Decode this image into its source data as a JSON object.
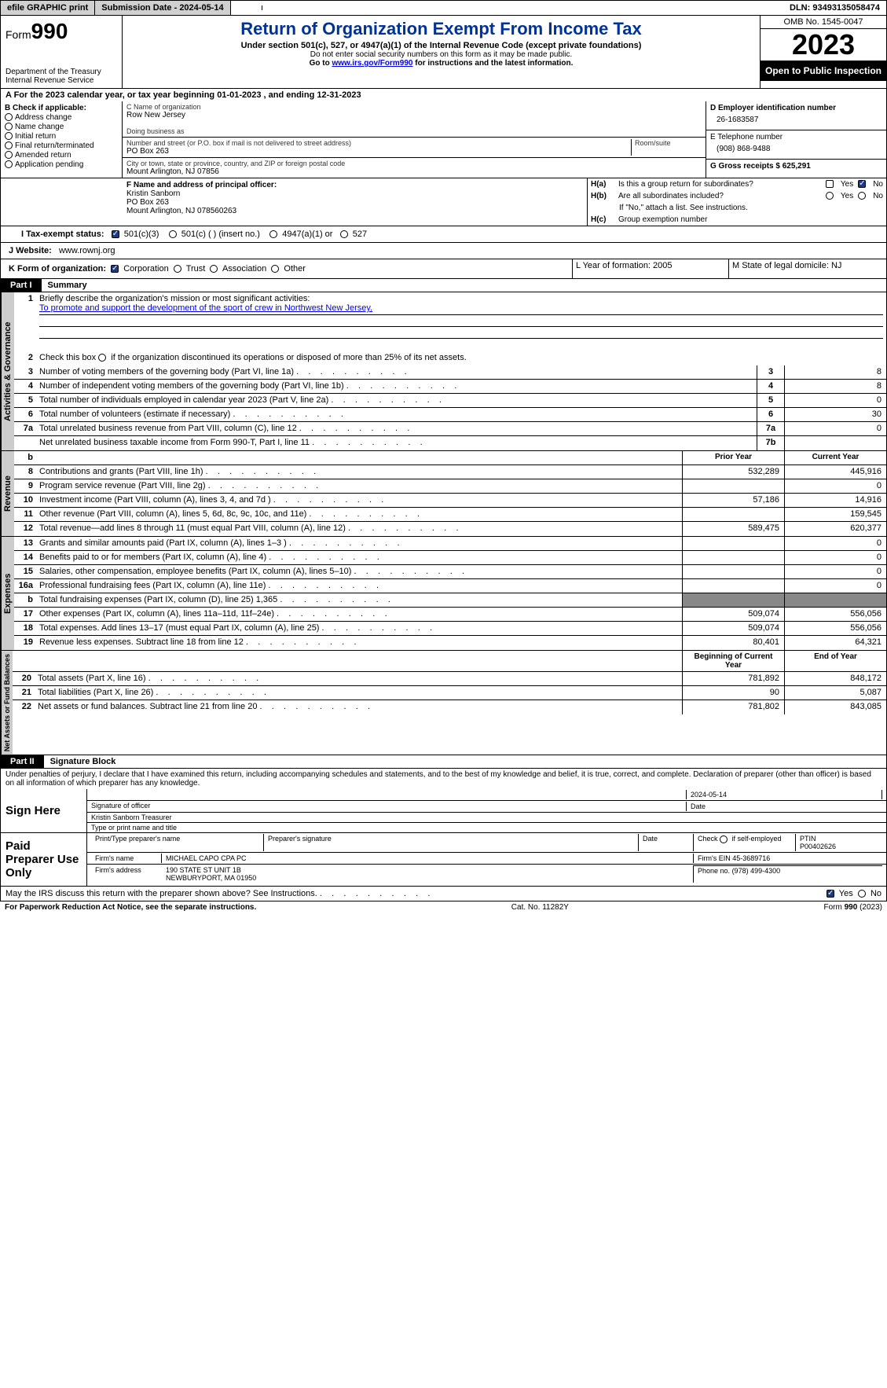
{
  "topbar": {
    "efile": "efile GRAPHIC print",
    "submission": "Submission Date - 2024-05-14",
    "dln": "DLN: 93493135058474"
  },
  "header": {
    "form_label": "Form",
    "form_num": "990",
    "dept": "Department of the Treasury",
    "irs": "Internal Revenue Service",
    "title": "Return of Organization Exempt From Income Tax",
    "sub": "Under section 501(c), 527, or 4947(a)(1) of the Internal Revenue Code (except private foundations)",
    "note1": "Do not enter social security numbers on this form as it may be made public.",
    "note2_pre": "Go to ",
    "note2_link": "www.irs.gov/Form990",
    "note2_post": " for instructions and the latest information.",
    "omb": "OMB No. 1545-0047",
    "year": "2023",
    "inspect": "Open to Public Inspection"
  },
  "line_a": "A  For the 2023 calendar year, or tax year beginning 01-01-2023    , and ending 12-31-2023",
  "box_b": {
    "title": "B Check if applicable:",
    "items": [
      "Address change",
      "Name change",
      "Initial return",
      "Final return/terminated",
      "Amended return",
      "Application pending"
    ]
  },
  "box_c": {
    "name_lbl": "C Name of organization",
    "name": "Row New Jersey",
    "dba_lbl": "Doing business as",
    "addr_lbl": "Number and street (or P.O. box if mail is not delivered to street address)",
    "addr": "PO Box 263",
    "room_lbl": "Room/suite",
    "city_lbl": "City or town, state or province, country, and ZIP or foreign postal code",
    "city": "Mount Arlington, NJ  07856"
  },
  "box_d": {
    "lbl": "D Employer identification number",
    "val": "26-1683587"
  },
  "box_e": {
    "lbl": "E Telephone number",
    "val": "(908) 868-9488"
  },
  "box_g": {
    "lbl": "G Gross receipts $ 625,291"
  },
  "box_f": {
    "lbl": "F  Name and address of principal officer:",
    "name": "Kristin Sanborn",
    "addr1": "PO Box 263",
    "addr2": "Mount Arlington, NJ  078560263"
  },
  "box_h": {
    "ha_lbl": "H(a)",
    "ha_txt": "Is this a group return for subordinates?",
    "hb_lbl": "H(b)",
    "hb_txt": "Are all subordinates included?",
    "hb_note": "If \"No,\" attach a list. See instructions.",
    "hc_lbl": "H(c)",
    "hc_txt": "Group exemption number",
    "yes": "Yes",
    "no": "No"
  },
  "box_i": {
    "lbl": "I   Tax-exempt status:",
    "opts": [
      "501(c)(3)",
      "501(c) (  ) (insert no.)",
      "4947(a)(1) or",
      "527"
    ]
  },
  "box_j": {
    "lbl": "J   Website:",
    "val": "www.rownj.org"
  },
  "box_k": {
    "lbl": "K Form of organization:",
    "opts": [
      "Corporation",
      "Trust",
      "Association",
      "Other"
    ]
  },
  "box_l": "L Year of formation: 2005",
  "box_m": "M State of legal domicile: NJ",
  "part1": {
    "tag": "Part I",
    "title": "Summary"
  },
  "summary": {
    "q1_lbl": "Briefly describe the organization's mission or most significant activities:",
    "q1_val": "To promote and support the development of the sport of crew in Northwest New Jersey.",
    "q2": "Check this box      if the organization discontinued its operations or disposed of more than 25% of its net assets.",
    "rows_gov": [
      {
        "n": "3",
        "d": "Number of voting members of the governing body (Part VI, line 1a)",
        "ln": "3",
        "v": "8"
      },
      {
        "n": "4",
        "d": "Number of independent voting members of the governing body (Part VI, line 1b)",
        "ln": "4",
        "v": "8"
      },
      {
        "n": "5",
        "d": "Total number of individuals employed in calendar year 2023 (Part V, line 2a)",
        "ln": "5",
        "v": "0"
      },
      {
        "n": "6",
        "d": "Total number of volunteers (estimate if necessary)",
        "ln": "6",
        "v": "30"
      },
      {
        "n": "7a",
        "d": "Total unrelated business revenue from Part VIII, column (C), line 12",
        "ln": "7a",
        "v": "0"
      },
      {
        "n": "",
        "d": "Net unrelated business taxable income from Form 990-T, Part I, line 11",
        "ln": "7b",
        "v": ""
      }
    ],
    "hdr_b": "b",
    "hdr_prior": "Prior Year",
    "hdr_current": "Current Year",
    "rows_rev": [
      {
        "n": "8",
        "d": "Contributions and grants (Part VIII, line 1h)",
        "p": "532,289",
        "c": "445,916"
      },
      {
        "n": "9",
        "d": "Program service revenue (Part VIII, line 2g)",
        "p": "",
        "c": "0"
      },
      {
        "n": "10",
        "d": "Investment income (Part VIII, column (A), lines 3, 4, and 7d )",
        "p": "57,186",
        "c": "14,916"
      },
      {
        "n": "11",
        "d": "Other revenue (Part VIII, column (A), lines 5, 6d, 8c, 9c, 10c, and 11e)",
        "p": "",
        "c": "159,545"
      },
      {
        "n": "12",
        "d": "Total revenue—add lines 8 through 11 (must equal Part VIII, column (A), line 12)",
        "p": "589,475",
        "c": "620,377"
      }
    ],
    "rows_exp": [
      {
        "n": "13",
        "d": "Grants and similar amounts paid (Part IX, column (A), lines 1–3 )",
        "p": "",
        "c": "0"
      },
      {
        "n": "14",
        "d": "Benefits paid to or for members (Part IX, column (A), line 4)",
        "p": "",
        "c": "0"
      },
      {
        "n": "15",
        "d": "Salaries, other compensation, employee benefits (Part IX, column (A), lines 5–10)",
        "p": "",
        "c": "0"
      },
      {
        "n": "16a",
        "d": "Professional fundraising fees (Part IX, column (A), line 11e)",
        "p": "",
        "c": "0"
      },
      {
        "n": "b",
        "d": "Total fundraising expenses (Part IX, column (D), line 25) 1,365",
        "p": "shade",
        "c": "shade"
      },
      {
        "n": "17",
        "d": "Other expenses (Part IX, column (A), lines 11a–11d, 11f–24e)",
        "p": "509,074",
        "c": "556,056"
      },
      {
        "n": "18",
        "d": "Total expenses. Add lines 13–17 (must equal Part IX, column (A), line 25)",
        "p": "509,074",
        "c": "556,056"
      },
      {
        "n": "19",
        "d": "Revenue less expenses. Subtract line 18 from line 12",
        "p": "80,401",
        "c": "64,321"
      }
    ],
    "hdr_begin": "Beginning of Current Year",
    "hdr_end": "End of Year",
    "rows_net": [
      {
        "n": "20",
        "d": "Total assets (Part X, line 16)",
        "p": "781,892",
        "c": "848,172"
      },
      {
        "n": "21",
        "d": "Total liabilities (Part X, line 26)",
        "p": "90",
        "c": "5,087"
      },
      {
        "n": "22",
        "d": "Net assets or fund balances. Subtract line 21 from line 20",
        "p": "781,802",
        "c": "843,085"
      }
    ],
    "vlabels": {
      "gov": "Activities & Governance",
      "rev": "Revenue",
      "exp": "Expenses",
      "net": "Net Assets or Fund Balances"
    }
  },
  "part2": {
    "tag": "Part II",
    "title": "Signature Block"
  },
  "perjury": "Under penalties of perjury, I declare that I have examined this return, including accompanying schedules and statements, and to the best of my knowledge and belief, it is true, correct, and complete. Declaration of preparer (other than officer) is based on all information of which preparer has any knowledge.",
  "sign": {
    "here": "Sign Here",
    "sig_date": "2024-05-14",
    "sig_officer_lbl": "Signature of officer",
    "sig_date_lbl": "Date",
    "officer": "Kristin Sanborn  Treasurer",
    "officer_lbl": "Type or print name and title"
  },
  "paid": {
    "title": "Paid Preparer Use Only",
    "name_lbl": "Print/Type preparer's name",
    "sig_lbl": "Preparer's signature",
    "date_lbl": "Date",
    "self_lbl": "Check        if self-employed",
    "ptin_lbl": "PTIN",
    "ptin": "P00402626",
    "firm_name_lbl": "Firm's name",
    "firm_name": "MICHAEL CAPO CPA PC",
    "firm_ein_lbl": "Firm's EIN",
    "firm_ein": "45-3689716",
    "firm_addr_lbl": "Firm's address",
    "firm_addr1": "190 STATE ST UNIT 1B",
    "firm_addr2": "NEWBURYPORT, MA  01950",
    "phone_lbl": "Phone no.",
    "phone": "(978) 499-4300"
  },
  "discuss": {
    "q": "May the IRS discuss this return with the preparer shown above? See Instructions.",
    "yes": "Yes",
    "no": "No"
  },
  "footer": {
    "left": "For Paperwork Reduction Act Notice, see the separate instructions.",
    "mid": "Cat. No. 11282Y",
    "right_a": "Form ",
    "right_b": "990",
    "right_c": " (2023)"
  },
  "colors": {
    "blue": "#003399",
    "link": "#0000ee",
    "checkfill": "#1a3a8a",
    "shade": "#999"
  }
}
